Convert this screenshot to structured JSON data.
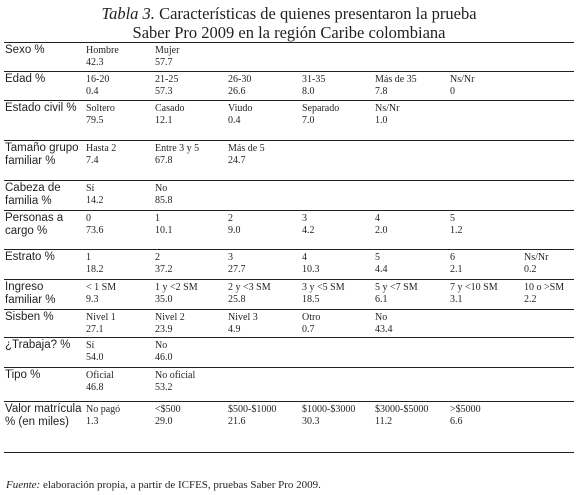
{
  "caption": {
    "label": "Tabla 3.",
    "line1": "Características de quienes presentaron la prueba",
    "line2": "Saber Pro 2009 en la región Caribe colombiana"
  },
  "rows": [
    {
      "title": "Sexo %",
      "cells": [
        {
          "opt": "Hombre",
          "val": "42.3"
        },
        {
          "opt": "Mujer",
          "val": "57.7"
        }
      ]
    },
    {
      "title": "Edad %",
      "cells": [
        {
          "opt": "16-20",
          "val": "0.4"
        },
        {
          "opt": "21-25",
          "val": "57.3"
        },
        {
          "opt": "26-30",
          "val": "26.6"
        },
        {
          "opt": "31-35",
          "val": "8.0"
        },
        {
          "opt": "Más de 35",
          "val": "7.8"
        },
        {
          "opt": "Ns/Nr",
          "val": "0"
        }
      ]
    },
    {
      "title": "Estado civil %",
      "cells": [
        {
          "opt": "Soltero",
          "val": "79.5"
        },
        {
          "opt": "Casado",
          "val": "12.1"
        },
        {
          "opt": "Viudo",
          "val": "0.4"
        },
        {
          "opt": "Separado",
          "val": "7.0"
        },
        {
          "opt": "Ns/Nr",
          "val": "1.0"
        }
      ]
    },
    {
      "title": "Tamaño grupo familiar %",
      "cells": [
        {
          "opt": "Hasta 2",
          "val": "7.4"
        },
        {
          "opt": "Entre 3 y 5",
          "val": "67.8"
        },
        {
          "opt": "Más de 5",
          "val": "24.7"
        }
      ]
    },
    {
      "title": "Cabeza de familia %",
      "cells": [
        {
          "opt": "Sí",
          "val": "14.2"
        },
        {
          "opt": "No",
          "val": "85.8"
        }
      ]
    },
    {
      "title": "Personas a cargo %",
      "cells": [
        {
          "opt": "0",
          "val": "73.6"
        },
        {
          "opt": "1",
          "val": "10.1"
        },
        {
          "opt": "2",
          "val": "9.0"
        },
        {
          "opt": "3",
          "val": "4.2"
        },
        {
          "opt": "4",
          "val": "2.0"
        },
        {
          "opt": "5",
          "val": "1.2"
        }
      ]
    },
    {
      "title": "Estrato %",
      "cells": [
        {
          "opt": "1",
          "val": "18.2"
        },
        {
          "opt": "2",
          "val": "37.2"
        },
        {
          "opt": "3",
          "val": "27.7"
        },
        {
          "opt": "4",
          "val": "10.3"
        },
        {
          "opt": "5",
          "val": "4.4"
        },
        {
          "opt": "6",
          "val": "2.1"
        },
        {
          "opt": "Ns/Nr",
          "val": "0.2"
        }
      ]
    },
    {
      "title": "Ingreso familiar %",
      "cells": [
        {
          "opt": "< 1 SM",
          "val": "9.3"
        },
        {
          "opt": "1 y <2 SM",
          "val": "35.0"
        },
        {
          "opt": "2 y <3 SM",
          "val": "25.8"
        },
        {
          "opt": "3 y <5 SM",
          "val": "18.5"
        },
        {
          "opt": "5 y <7 SM",
          "val": "6.1"
        },
        {
          "opt": "7 y <10 SM",
          "val": "3.1"
        },
        {
          "opt": "10 o >SM",
          "val": "2.2"
        }
      ]
    },
    {
      "title": "Sisben %",
      "cells": [
        {
          "opt": "Nivel 1",
          "val": "27.1"
        },
        {
          "opt": "Nivel 2",
          "val": "23.9"
        },
        {
          "opt": "Nivel 3",
          "val": "4.9"
        },
        {
          "opt": "Otro",
          "val": "0.7"
        },
        {
          "opt": "No",
          "val": "43.4"
        }
      ]
    },
    {
      "title": "¿Trabaja? %",
      "cells": [
        {
          "opt": "Sí",
          "val": "54.0"
        },
        {
          "opt": "No",
          "val": "46.0"
        }
      ]
    },
    {
      "title": "Tipo %",
      "cells": [
        {
          "opt": "Oficial",
          "val": "46.8"
        },
        {
          "opt": "No oficial",
          "val": "53.2"
        }
      ]
    },
    {
      "title": "Valor matrícula % (en miles)",
      "cells": [
        {
          "opt": "No pagó",
          "val": "1.3"
        },
        {
          "opt": "<$500",
          "val": "29.0"
        },
        {
          "opt": "$500-$1000",
          "val": "21.6"
        },
        {
          "opt": "$1000-$3000",
          "val": "30.3"
        },
        {
          "opt": "$3000-$5000",
          "val": "11.2"
        },
        {
          "opt": ">$5000",
          "val": "6.6"
        }
      ]
    }
  ],
  "source": {
    "label": "Fuente:",
    "text": " elaboración propia, a partir de ICFES, pruebas Saber Pro 2009."
  }
}
